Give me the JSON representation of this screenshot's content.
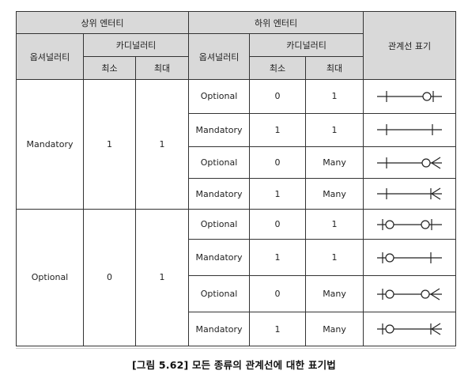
{
  "header": {
    "parent_entity": "상위 엔터티",
    "child_entity": "하위 엔터티",
    "optionality": "옵셔널러티",
    "cardinality": "카디널러티",
    "min": "최소",
    "max": "최대",
    "notation": "관계선 표기"
  },
  "groups": [
    {
      "parent_optionality": "Mandatory",
      "parent_min": "1",
      "parent_max": "1",
      "rows": [
        {
          "child_optionality": "Optional",
          "child_min": "0",
          "child_max": "1",
          "symbol": "mandatory-one-to-optional-one"
        },
        {
          "child_optionality": "Mandatory",
          "child_min": "1",
          "child_max": "1",
          "symbol": "mandatory-one-to-mandatory-one"
        },
        {
          "child_optionality": "Optional",
          "child_min": "0",
          "child_max": "Many",
          "symbol": "mandatory-one-to-optional-many"
        },
        {
          "child_optionality": "Mandatory",
          "child_min": "1",
          "child_max": "Many",
          "symbol": "mandatory-one-to-mandatory-many"
        }
      ]
    },
    {
      "parent_optionality": "Optional",
      "parent_min": "0",
      "parent_max": "1",
      "rows": [
        {
          "child_optionality": "Optional",
          "child_min": "0",
          "child_max": "1",
          "symbol": "optional-one-to-optional-one"
        },
        {
          "child_optionality": "Mandatory",
          "child_min": "1",
          "child_max": "1",
          "symbol": "optional-one-to-mandatory-one"
        },
        {
          "child_optionality": "Optional",
          "child_min": "0",
          "child_max": "Many",
          "symbol": "optional-one-to-optional-many"
        },
        {
          "child_optionality": "Mandatory",
          "child_min": "1",
          "child_max": "Many",
          "symbol": "optional-one-to-mandatory-many"
        }
      ]
    }
  ],
  "caption": "[그림 5.62] 모든 종류의 관계선에 대한 표기법"
}
